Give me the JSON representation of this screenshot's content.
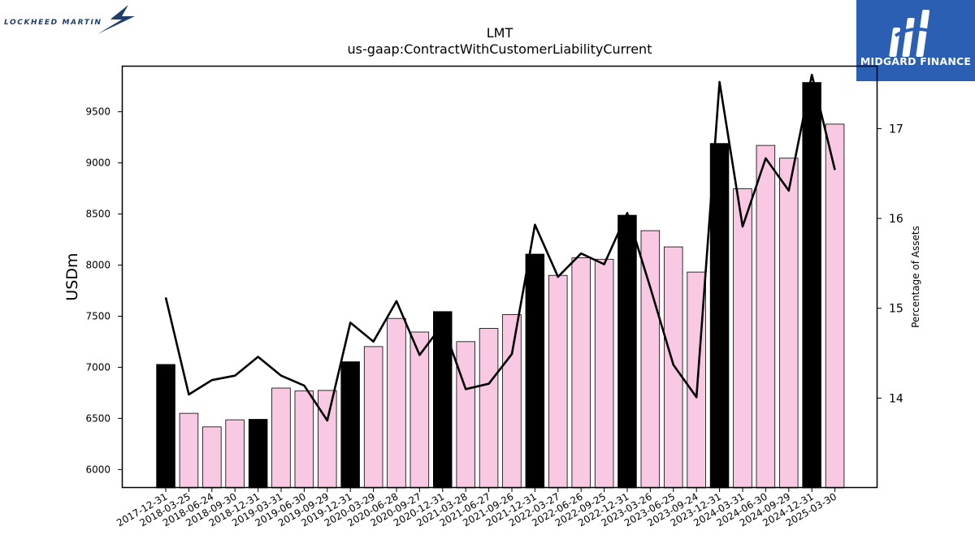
{
  "logos": {
    "left_text": "LOCKHEED MARTIN",
    "right_text": "MIDGARD FINANCE",
    "right_bg": "#2b5fb4"
  },
  "chart_data": {
    "type": "bar",
    "title": "LMT",
    "subtitle": "us-gaap:ContractWithCustomerLiabilityCurrent",
    "ylabel": "USDm",
    "y2label": "Percentage of Assets",
    "ylim": [
      5820,
      9950
    ],
    "y2lim": [
      13.0,
      17.7
    ],
    "yticks": [
      6000,
      6500,
      7000,
      7500,
      8000,
      8500,
      9000,
      9500
    ],
    "y2ticks": [
      14,
      15,
      16,
      17
    ],
    "grid": false,
    "colors": {
      "year_end": "#000000",
      "quarter": "#f9c9e3",
      "line": "#000000"
    },
    "categories": [
      "2017-12-31",
      "2018-03-25",
      "2018-06-24",
      "2018-09-30",
      "2018-12-31",
      "2019-03-31",
      "2019-06-30",
      "2019-09-29",
      "2019-12-31",
      "2020-03-29",
      "2020-06-28",
      "2020-09-27",
      "2020-12-31",
      "2021-03-28",
      "2021-06-27",
      "2021-09-26",
      "2021-12-31",
      "2022-03-27",
      "2022-06-26",
      "2022-09-25",
      "2022-12-31",
      "2023-03-26",
      "2023-06-25",
      "2023-09-24",
      "2023-12-31",
      "2024-03-31",
      "2024-06-30",
      "2024-09-29",
      "2024-12-31",
      "2025-03-30"
    ],
    "series": [
      {
        "kind": "bar",
        "values": [
          7028,
          6550,
          6417,
          6486,
          6491,
          6797,
          6768,
          6774,
          7054,
          7203,
          7478,
          7345,
          7545,
          7251,
          7381,
          7516,
          8107,
          7899,
          8071,
          8057,
          8488,
          8337,
          8178,
          7932,
          9190,
          8746,
          9171,
          9046,
          9786,
          9379
        ]
      },
      {
        "kind": "line",
        "axis": "right",
        "values": [
          15.12,
          14.04,
          14.2,
          14.25,
          14.46,
          14.25,
          14.14,
          13.75,
          14.84,
          14.63,
          15.08,
          14.48,
          14.82,
          14.1,
          14.16,
          14.49,
          15.93,
          15.35,
          15.61,
          15.49,
          16.06,
          15.23,
          14.37,
          14.01,
          17.52,
          15.91,
          16.67,
          16.31,
          17.6,
          16.54
        ]
      }
    ]
  }
}
